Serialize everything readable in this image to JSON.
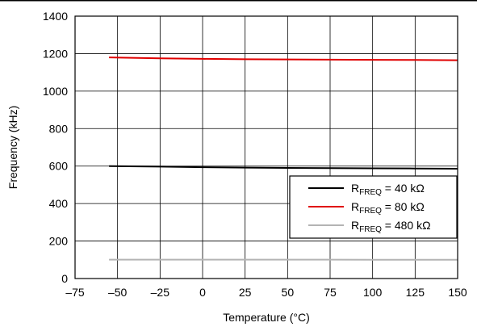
{
  "chart_data": {
    "type": "line",
    "xlabel": "Temperature (°C)",
    "ylabel": "Frequency (kHz)",
    "xlim": [
      -75,
      150
    ],
    "ylim": [
      0,
      1400
    ],
    "x_ticks": [
      -75,
      -50,
      -25,
      0,
      25,
      50,
      75,
      100,
      125,
      150
    ],
    "x_tick_labels": [
      "–75",
      "–50",
      "–25",
      "0",
      "25",
      "50",
      "75",
      "100",
      "125",
      "150"
    ],
    "y_ticks": [
      0,
      200,
      400,
      600,
      800,
      1000,
      1200,
      1400
    ],
    "y_tick_labels": [
      "0",
      "200",
      "400",
      "600",
      "800",
      "1000",
      "1200",
      "1400"
    ],
    "grid": true,
    "legend_position": "middle-right",
    "series": [
      {
        "name": "R_FREQ = 40 kΩ",
        "legend": {
          "prefix": "R",
          "sub": "FREQ",
          "suffix": " = 40 kΩ"
        },
        "color": "#000000",
        "x": [
          -55,
          -25,
          0,
          25,
          50,
          75,
          100,
          125,
          150
        ],
        "y": [
          600,
          597,
          594,
          592,
          590,
          589,
          588,
          587,
          586
        ]
      },
      {
        "name": "R_FREQ = 80 kΩ",
        "legend": {
          "prefix": "R",
          "sub": "FREQ",
          "suffix": " = 80 kΩ"
        },
        "color": "#e00000",
        "x": [
          -55,
          -25,
          0,
          25,
          50,
          75,
          100,
          125,
          150
        ],
        "y": [
          1180,
          1175,
          1172,
          1170,
          1169,
          1168,
          1167,
          1166,
          1165
        ]
      },
      {
        "name": "R_FREQ = 480 kΩ",
        "legend": {
          "prefix": "R",
          "sub": "FREQ",
          "suffix": " = 480 kΩ"
        },
        "color": "#b4b4b4",
        "x": [
          -55,
          -25,
          0,
          25,
          50,
          75,
          100,
          125,
          150
        ],
        "y": [
          101,
          101,
          101,
          101,
          101,
          101,
          100,
          100,
          100
        ]
      }
    ]
  }
}
